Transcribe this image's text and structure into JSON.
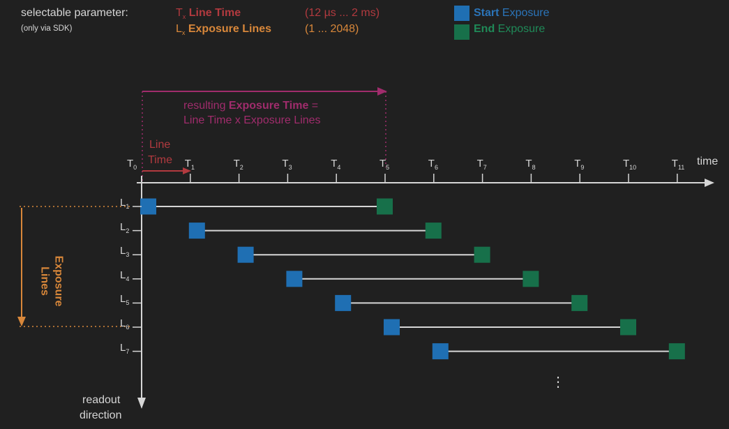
{
  "header": {
    "selectable_label": "selectable parameter:",
    "sdk_note": "(only via SDK)",
    "param1": {
      "symbol": "T",
      "sub": "x",
      "name": "Line Time",
      "range": "(12 µs ... 2 ms)"
    },
    "param2": {
      "symbol": "L",
      "sub": "x",
      "name": "Exposure Lines",
      "range": "(1 ... 2048)"
    }
  },
  "legend": {
    "start": {
      "bold": "Start",
      "rest": " Exposure",
      "color": "#1f6fb3"
    },
    "end": {
      "bold": "End",
      "rest": " Exposure",
      "color": "#17704a"
    }
  },
  "exposure_time": {
    "prefix": "resulting ",
    "bold": "Exposure Time",
    "suffix": " =",
    "line2": "Line Time x Exposure Lines"
  },
  "line_time_label": {
    "line1": "Line",
    "line2": "Time"
  },
  "exposure_lines_label": {
    "line1": "Exposure",
    "line2": "Lines"
  },
  "time_axis": {
    "label": "time",
    "ticks": [
      "0",
      "1",
      "2",
      "3",
      "4",
      "5",
      "6",
      "7",
      "8",
      "9",
      "10",
      "11"
    ],
    "tick_prefix": "T"
  },
  "readout": {
    "line1": "readout",
    "line2": "direction"
  },
  "lines": {
    "prefix": "L",
    "rows": [
      {
        "sub": "1",
        "start_t": 0,
        "end_t": 5
      },
      {
        "sub": "2",
        "start_t": 1,
        "end_t": 6
      },
      {
        "sub": "3",
        "start_t": 2,
        "end_t": 7
      },
      {
        "sub": "4",
        "start_t": 3,
        "end_t": 8
      },
      {
        "sub": "5",
        "start_t": 4,
        "end_t": 9
      },
      {
        "sub": "6",
        "start_t": 5,
        "end_t": 10
      },
      {
        "sub": "7",
        "start_t": 6,
        "end_t": 11
      }
    ]
  },
  "ellipsis": "⋮",
  "colors": {
    "line_time": "#b23a3f",
    "exposure_lines": "#d8873a",
    "exposure_time": "#a02c6c",
    "start": "#1f6fb3",
    "end": "#17704a",
    "axis": "#d6d6d6"
  }
}
